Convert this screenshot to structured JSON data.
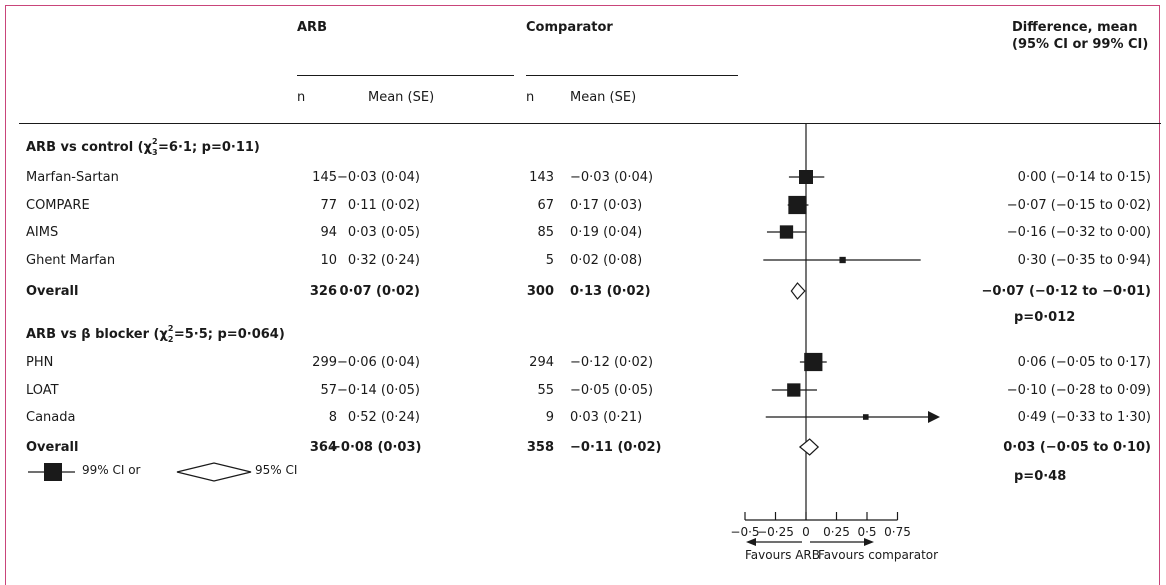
{
  "header": {
    "arb": "ARB",
    "comparator": "Comparator",
    "difference_line1": "Difference, mean",
    "difference_line2": "(95% CI or 99% CI)",
    "n": "n",
    "mean_se": "Mean (SE)"
  },
  "groups": [
    {
      "label_prefix": "ARB vs control (χ",
      "chi_sub": "3",
      "chi_sup": "2",
      "label_suffix": "=6·1; p=0·11)",
      "rows": [
        {
          "study": "Marfan-Sartan",
          "arb_n": "145",
          "arb_mean": "−0·03 (0·04)",
          "comp_n": "143",
          "comp_mean": "−0·03 (0·04)",
          "diff": "0·00 (−0·14 to 0·15)",
          "bold": false
        },
        {
          "study": "COMPARE",
          "arb_n": "77",
          "arb_mean": "0·11 (0·02)",
          "comp_n": "67",
          "comp_mean": "0·17 (0·03)",
          "diff": "−0·07 (−0·15 to 0·02)",
          "bold": false
        },
        {
          "study": "AIMS",
          "arb_n": "94",
          "arb_mean": "0·03 (0·05)",
          "comp_n": "85",
          "comp_mean": "0·19 (0·04)",
          "diff": "−0·16 (−0·32 to 0·00)",
          "bold": false
        },
        {
          "study": "Ghent Marfan",
          "arb_n": "10",
          "arb_mean": "0·32 (0·24)",
          "comp_n": "5",
          "comp_mean": "0·02 (0·08)",
          "diff": "0·30 (−0·35 to 0·94)",
          "bold": false
        },
        {
          "study": "Overall",
          "arb_n": "326",
          "arb_mean": "0·07 (0·02)",
          "comp_n": "300",
          "comp_mean": "0·13 (0·02)",
          "diff": "−0·07 (−0·12 to −0·01)",
          "bold": true
        }
      ],
      "p_value": "p=0·012"
    },
    {
      "label_prefix": "ARB vs β blocker (χ",
      "chi_sub": "2",
      "chi_sup": "2",
      "label_suffix": "=5·5; p=0·064)",
      "rows": [
        {
          "study": "PHN",
          "arb_n": "299",
          "arb_mean": "−0·06 (0·04)",
          "comp_n": "294",
          "comp_mean": "−0·12 (0·02)",
          "diff": "0·06 (−0·05 to 0·17)",
          "bold": false
        },
        {
          "study": "LOAT",
          "arb_n": "57",
          "arb_mean": "−0·14 (0·05)",
          "comp_n": "55",
          "comp_mean": "−0·05 (0·05)",
          "diff": "−0·10 (−0·28 to 0·09)",
          "bold": false
        },
        {
          "study": "Canada",
          "arb_n": "8",
          "arb_mean": "0·52 (0·24)",
          "comp_n": "9",
          "comp_mean": "0·03 (0·21)",
          "diff": "0·49 (−0·33 to 1·30)",
          "bold": false
        },
        {
          "study": "Overall",
          "arb_n": "364",
          "arb_mean": "−0·08 (0·03)",
          "comp_n": "358",
          "comp_mean": "−0·11 (0·02)",
          "diff": "0·03 (−0·05 to 0·10)",
          "bold": true
        }
      ],
      "p_value": "p=0·48"
    }
  ],
  "legend": {
    "square_label": "99% CI or",
    "diamond_label": "95% CI"
  },
  "axis": {
    "tick_labels": [
      "−0·5",
      "−0·25",
      "0",
      "0·25",
      "0·5",
      "0·75"
    ],
    "favours_left": "Favours ARB",
    "favours_right": "Favours comparator"
  },
  "chart_data": {
    "type": "forest",
    "xlim": [
      -0.5,
      0.75
    ],
    "ticks": [
      -0.5,
      -0.25,
      0,
      0.25,
      0.5,
      0.75
    ],
    "colors": {
      "marker": "#1a1a1a",
      "frame": "#c9457a"
    },
    "points": [
      {
        "study": "Marfan-Sartan",
        "estimate": 0.0,
        "lower": -0.14,
        "upper": 0.15,
        "weight": 1.0,
        "shape": "square"
      },
      {
        "study": "COMPARE",
        "estimate": -0.07,
        "lower": -0.15,
        "upper": 0.02,
        "weight": 1.3,
        "shape": "square"
      },
      {
        "study": "AIMS",
        "estimate": -0.16,
        "lower": -0.32,
        "upper": 0.0,
        "weight": 0.95,
        "shape": "square"
      },
      {
        "study": "Ghent Marfan",
        "estimate": 0.3,
        "lower": -0.35,
        "upper": 0.94,
        "weight": 0.45,
        "shape": "square"
      },
      {
        "study": "Overall (ARB vs control)",
        "estimate": -0.07,
        "lower": -0.12,
        "upper": -0.01,
        "shape": "diamond"
      },
      {
        "study": "PHN",
        "estimate": 0.06,
        "lower": -0.05,
        "upper": 0.17,
        "weight": 1.3,
        "shape": "square"
      },
      {
        "study": "LOAT",
        "estimate": -0.1,
        "lower": -0.28,
        "upper": 0.09,
        "weight": 0.95,
        "shape": "square"
      },
      {
        "study": "Canada",
        "estimate": 0.49,
        "lower": -0.33,
        "upper": 1.3,
        "weight": 0.4,
        "shape": "square"
      },
      {
        "study": "Overall (ARB vs β blocker)",
        "estimate": 0.03,
        "lower": -0.05,
        "upper": 0.1,
        "shape": "diamond"
      }
    ]
  }
}
